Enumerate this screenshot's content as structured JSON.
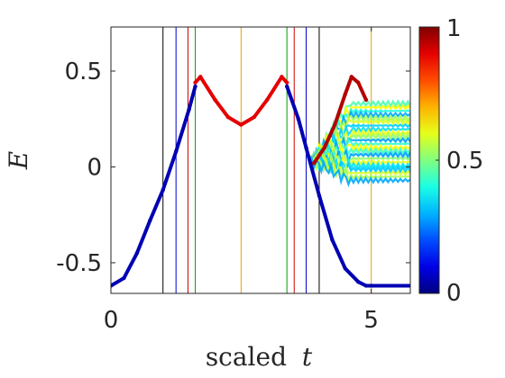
{
  "chart_data": {
    "type": "scatter",
    "xlabel": "scaled",
    "xlabel_var": "t",
    "ylabel": "E",
    "xlim": [
      0,
      5.75
    ],
    "ylim": [
      -0.66,
      0.73
    ],
    "xticks": [
      0,
      5
    ],
    "xtick_labels": [
      "0",
      "5"
    ],
    "yticks": [
      -0.5,
      0,
      0.5
    ],
    "ytick_labels": [
      "-0.5",
      "0",
      "0.5"
    ],
    "grid": false,
    "colorbar": {
      "colormap": "jet",
      "range": [
        0,
        1
      ],
      "ticks": [
        0,
        0.5,
        1
      ],
      "tick_labels": [
        "0",
        "0.5",
        "1"
      ]
    },
    "vertical_lines": [
      {
        "x": 1.0,
        "color": "#000000"
      },
      {
        "x": 1.25,
        "color": "#0000cc"
      },
      {
        "x": 1.48,
        "color": "#cc0000"
      },
      {
        "x": 1.62,
        "color": "#00a000"
      },
      {
        "x": 2.5,
        "color": "#e8a010"
      },
      {
        "x": 3.38,
        "color": "#00a000"
      },
      {
        "x": 3.52,
        "color": "#cc0000"
      },
      {
        "x": 3.75,
        "color": "#0000cc"
      },
      {
        "x": 4.0,
        "color": "#000000"
      },
      {
        "x": 5.0,
        "color": "#e8a010"
      }
    ],
    "series": [
      {
        "segment": "rise",
        "color_value": 0.05,
        "x": [
          0,
          0.25,
          0.5,
          0.75,
          1.0,
          1.25,
          1.5,
          1.62
        ],
        "y": [
          -0.62,
          -0.58,
          -0.45,
          -0.28,
          -0.12,
          0.08,
          0.3,
          0.42
        ]
      },
      {
        "segment": "arch",
        "color_value": 0.9,
        "x": [
          1.62,
          1.72,
          2.0,
          2.25,
          2.5,
          2.75,
          3.0,
          3.28,
          3.38
        ],
        "y": [
          0.44,
          0.47,
          0.35,
          0.26,
          0.22,
          0.26,
          0.35,
          0.47,
          0.44
        ]
      },
      {
        "segment": "fall",
        "color_value": 0.05,
        "x": [
          3.38,
          3.6,
          3.75,
          4.0,
          4.25,
          4.5,
          4.75,
          4.9,
          5.0,
          5.75
        ],
        "y": [
          0.42,
          0.25,
          0.1,
          -0.15,
          -0.38,
          -0.53,
          -0.6,
          -0.62,
          -0.62,
          -0.62
        ]
      },
      {
        "segment": "upper-branch",
        "color_value": 0.95,
        "x": [
          3.9,
          4.1,
          4.3,
          4.5,
          4.62,
          4.75,
          4.9
        ],
        "y": [
          0.02,
          0.1,
          0.22,
          0.38,
          0.47,
          0.44,
          0.35
        ]
      }
    ]
  }
}
